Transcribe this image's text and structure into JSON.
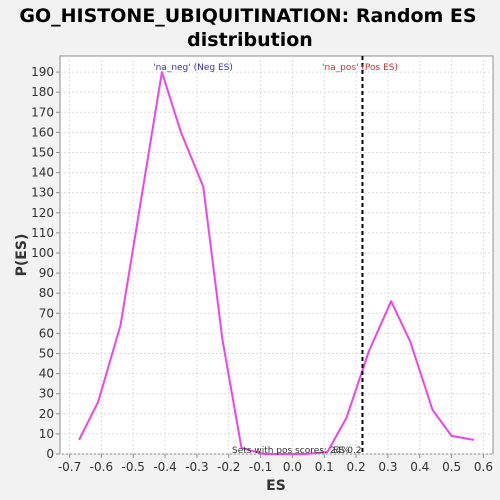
{
  "chart_data": {
    "type": "line",
    "title_line1": "GO_HISTONE_UBIQUITINATION: Random ES",
    "title_line2": "distribution",
    "xlabel": "ES",
    "ylabel": "P(ES)",
    "xlim": [
      -0.73,
      0.63
    ],
    "ylim": [
      0,
      198
    ],
    "x_ticks": [
      -0.7,
      -0.6,
      -0.5,
      -0.4,
      -0.3,
      -0.2,
      -0.1,
      0.0,
      0.1,
      0.2,
      0.3,
      0.4,
      0.5,
      0.6
    ],
    "x_tick_labels": [
      "-0.7",
      "-0.6",
      "-0.5",
      "-0.4",
      "-0.3",
      "-0.2",
      "-0.1",
      "0.0",
      "0.1",
      "0.2",
      "0.3",
      "0.4",
      "0.5",
      "0.6"
    ],
    "y_ticks": [
      0,
      10,
      20,
      30,
      40,
      50,
      60,
      70,
      80,
      90,
      100,
      110,
      120,
      130,
      140,
      150,
      160,
      170,
      180,
      190
    ],
    "grid": true,
    "series": [
      {
        "color": "#ee44ee",
        "x": [
          -0.67,
          -0.61,
          -0.54,
          -0.48,
          -0.41,
          -0.35,
          -0.28,
          -0.22,
          -0.16,
          -0.09,
          -0.03,
          0.04,
          0.11,
          0.17,
          0.24,
          0.31,
          0.37,
          0.44,
          0.5,
          0.57
        ],
        "y": [
          7,
          26,
          64,
          122,
          190,
          160,
          133,
          57,
          3,
          0,
          0,
          0,
          1,
          18,
          51,
          76,
          56,
          22,
          9,
          7
        ]
      }
    ],
    "reference_line": {
      "x": 0.22,
      "color": "#000000"
    },
    "annotations": {
      "neg_label": "'na_neg' (Neg ES)",
      "neg_color": "#3333cc",
      "pos_label": "'na_pos' (Pos ES)",
      "pos_color": "#cc3333",
      "bottom_text": "Sets with pos scores: 24%",
      "es_label": "ES 0.2"
    }
  }
}
